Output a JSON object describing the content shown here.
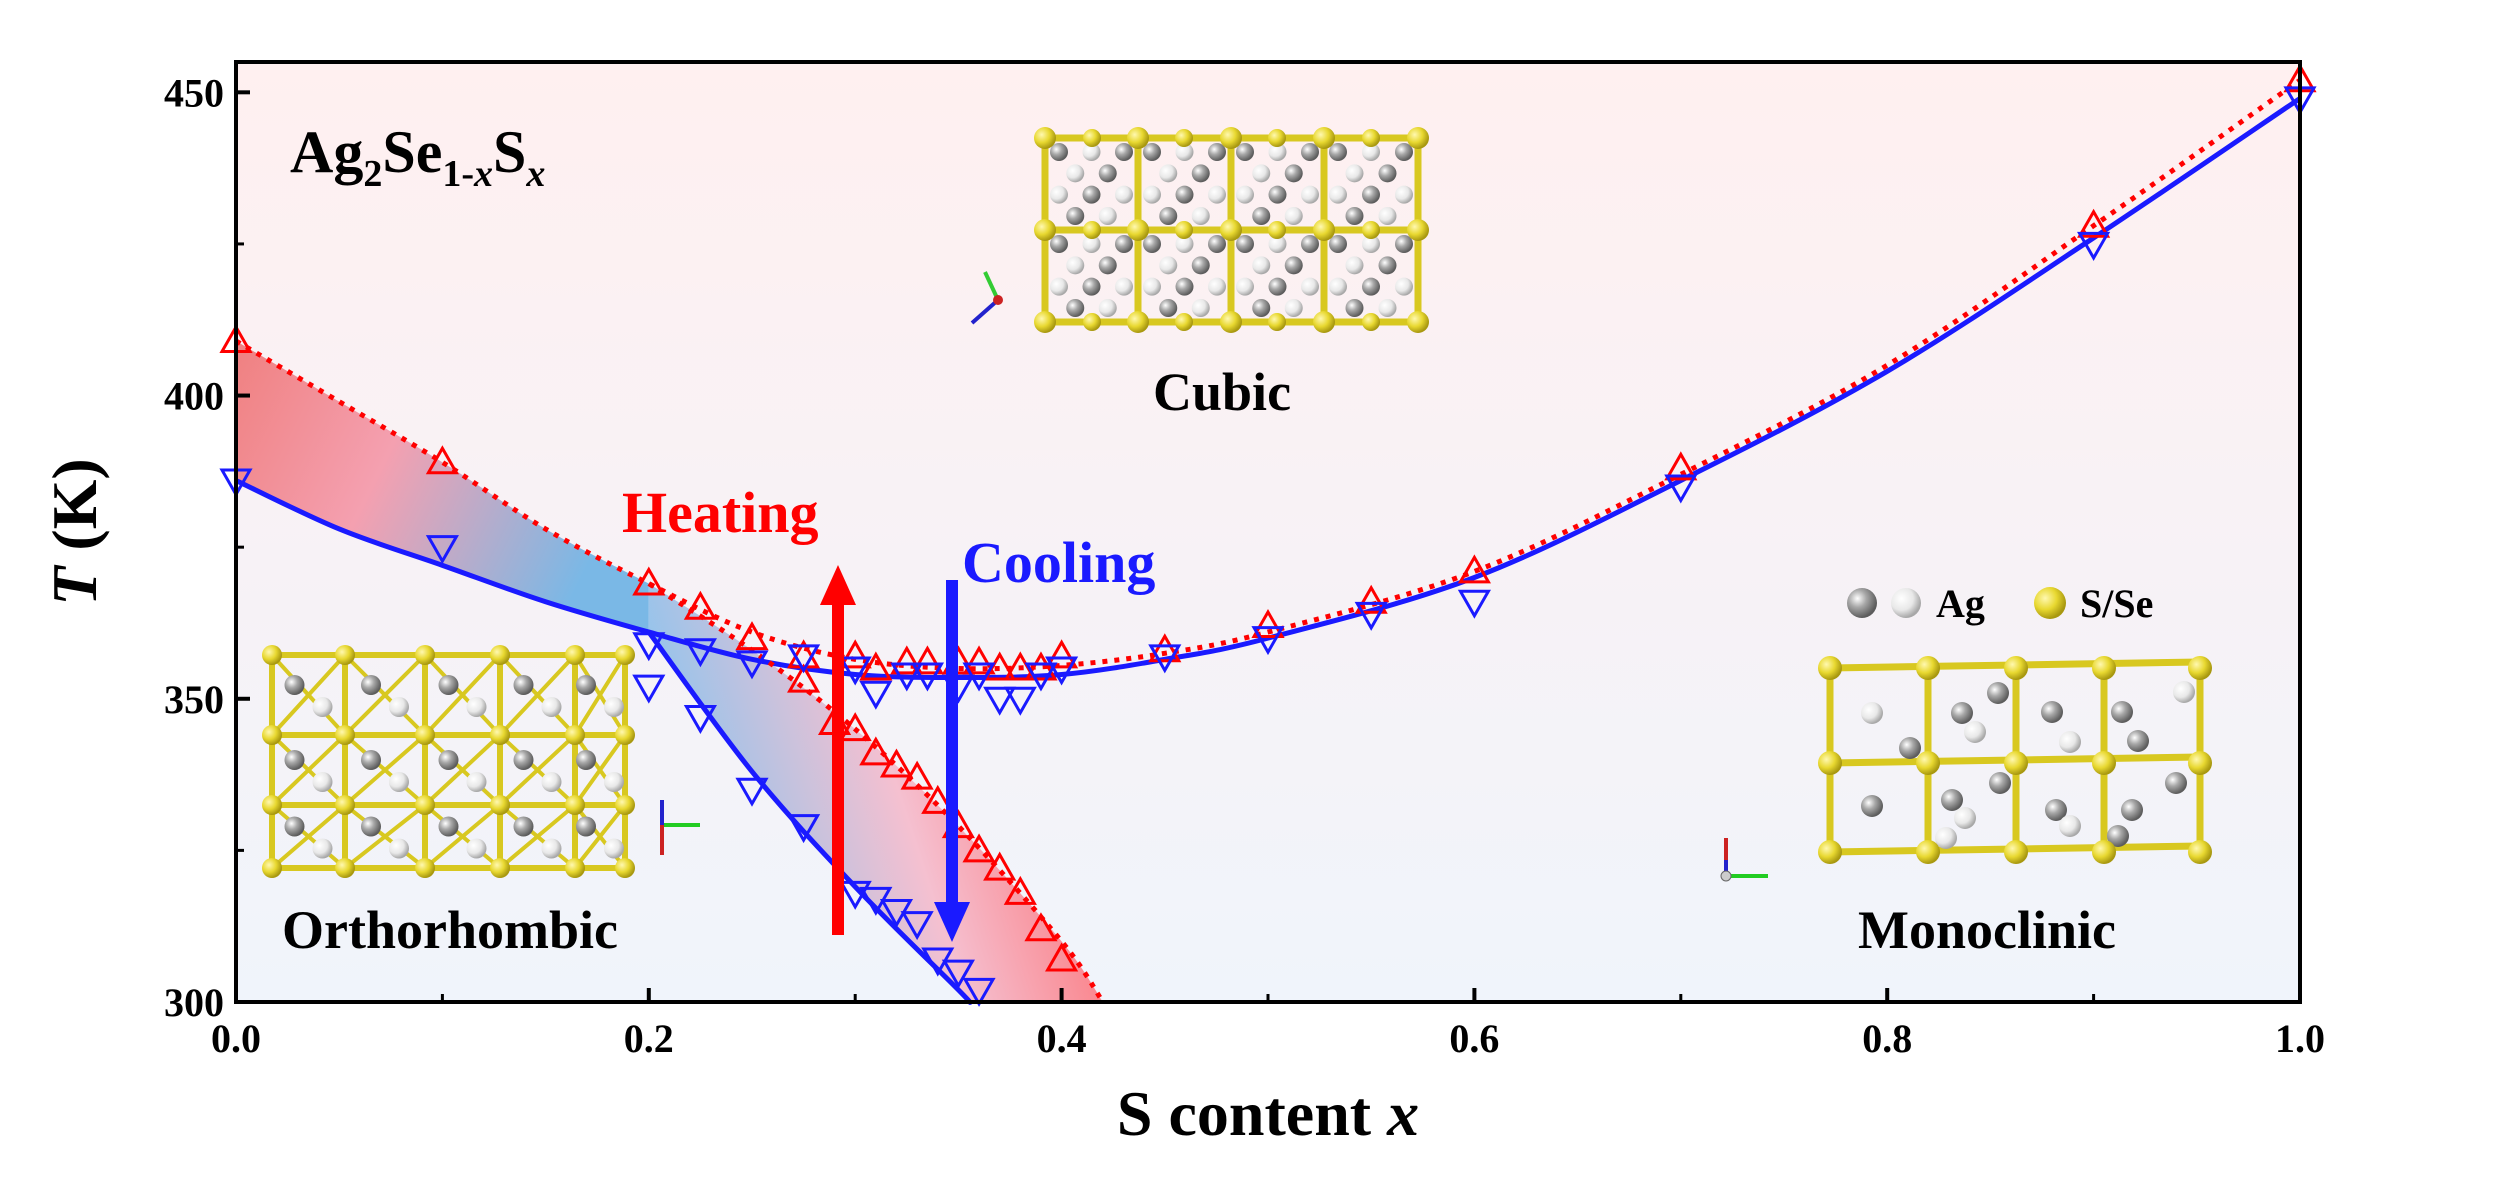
{
  "chart_data": {
    "type": "scatter",
    "title": "",
    "xlabel": {
      "text": "S content ",
      "var": "x"
    },
    "ylabel": {
      "var": "T",
      "text": " (K)"
    },
    "xlim": [
      0,
      1.0
    ],
    "ylim": [
      300,
      455
    ],
    "xticks": [
      "0.0",
      "0.2",
      "0.4",
      "0.6",
      "0.8",
      "1.0"
    ],
    "yticks": [
      "300",
      "350",
      "400",
      "450"
    ],
    "formula": {
      "a": "Ag",
      "a_sub": "2",
      "b": "Se",
      "b_sub": "1-",
      "b_sub_var": "x",
      "c": "S",
      "c_sub_var": "x"
    },
    "colors": {
      "heating": "#ff0000",
      "cooling": "#1a1aff",
      "crystal": "#e0d030",
      "ag_dark": "#8c8c8c",
      "ag_light": "#e6e6e6"
    },
    "annotations": {
      "heating": "Heating",
      "cooling": "Cooling",
      "cubic": "Cubic",
      "orthorhombic": "Orthorhombic",
      "monoclinic": "Monoclinic",
      "legend_ag": "Ag",
      "legend_s": "S/Se"
    },
    "series": [
      {
        "marker": "triangle-up",
        "color": "#ff0000",
        "points": [
          [
            0.0,
            409
          ],
          [
            0.1,
            389
          ],
          [
            0.2,
            369
          ],
          [
            0.225,
            365
          ],
          [
            0.25,
            360
          ],
          [
            0.275,
            357
          ],
          [
            0.3,
            357
          ],
          [
            0.31,
            355
          ],
          [
            0.325,
            356
          ],
          [
            0.335,
            356
          ],
          [
            0.35,
            356
          ],
          [
            0.36,
            356
          ],
          [
            0.37,
            355
          ],
          [
            0.38,
            355
          ],
          [
            0.39,
            355
          ],
          [
            0.4,
            357
          ],
          [
            0.45,
            358
          ],
          [
            0.5,
            362
          ],
          [
            0.55,
            366
          ],
          [
            0.6,
            371
          ],
          [
            0.7,
            388
          ],
          [
            0.9,
            428
          ],
          [
            1.0,
            452
          ],
          [
            0.275,
            353
          ],
          [
            0.29,
            346
          ],
          [
            0.3,
            345
          ],
          [
            0.31,
            341
          ],
          [
            0.32,
            339
          ],
          [
            0.33,
            337
          ],
          [
            0.34,
            333
          ],
          [
            0.35,
            329
          ],
          [
            0.36,
            325
          ],
          [
            0.37,
            322
          ],
          [
            0.38,
            318
          ],
          [
            0.39,
            312
          ],
          [
            0.4,
            307
          ]
        ]
      },
      {
        "marker": "triangle-down",
        "color": "#1a1aff",
        "points": [
          [
            0.0,
            386
          ],
          [
            0.1,
            375
          ],
          [
            0.2,
            359
          ],
          [
            0.225,
            358
          ],
          [
            0.25,
            356
          ],
          [
            0.275,
            357
          ],
          [
            0.3,
            355
          ],
          [
            0.31,
            351
          ],
          [
            0.325,
            354
          ],
          [
            0.335,
            354
          ],
          [
            0.35,
            352
          ],
          [
            0.36,
            354
          ],
          [
            0.37,
            350
          ],
          [
            0.38,
            350
          ],
          [
            0.39,
            354
          ],
          [
            0.4,
            355
          ],
          [
            0.45,
            357
          ],
          [
            0.5,
            360
          ],
          [
            0.55,
            364
          ],
          [
            0.6,
            366
          ],
          [
            0.7,
            385
          ],
          [
            0.9,
            425
          ],
          [
            1.0,
            449
          ],
          [
            0.2,
            352
          ],
          [
            0.225,
            347
          ],
          [
            0.25,
            335
          ],
          [
            0.275,
            329
          ],
          [
            0.3,
            318
          ],
          [
            0.31,
            317
          ],
          [
            0.32,
            315
          ],
          [
            0.33,
            313
          ],
          [
            0.34,
            307
          ],
          [
            0.35,
            305
          ],
          [
            0.36,
            302
          ]
        ]
      }
    ],
    "curves": [
      {
        "name_ref": "heating",
        "style": "dotted",
        "color": "#ff0000",
        "points": [
          [
            0.0,
            409
          ],
          [
            0.05,
            399
          ],
          [
            0.1,
            389
          ],
          [
            0.15,
            378
          ],
          [
            0.2,
            369
          ],
          [
            0.25,
            361
          ],
          [
            0.3,
            356.5
          ],
          [
            0.35,
            355
          ],
          [
            0.4,
            355.5
          ],
          [
            0.45,
            357.5
          ],
          [
            0.5,
            361
          ],
          [
            0.6,
            371
          ],
          [
            0.7,
            387
          ],
          [
            0.8,
            405
          ],
          [
            0.9,
            428
          ],
          [
            1.0,
            452
          ]
        ]
      },
      {
        "name_ref": "cooling",
        "style": "solid",
        "color": "#1a1aff",
        "points": [
          [
            0.0,
            386
          ],
          [
            0.05,
            378
          ],
          [
            0.1,
            372
          ],
          [
            0.15,
            366
          ],
          [
            0.2,
            361
          ],
          [
            0.25,
            356.5
          ],
          [
            0.3,
            354
          ],
          [
            0.35,
            353.5
          ],
          [
            0.4,
            354
          ],
          [
            0.45,
            356.5
          ],
          [
            0.5,
            360
          ],
          [
            0.6,
            370
          ],
          [
            0.7,
            386
          ],
          [
            0.8,
            404
          ],
          [
            0.9,
            426
          ],
          [
            1.0,
            449
          ]
        ]
      },
      {
        "name_ref": "heating",
        "style": "dotted",
        "color": "#ff0000",
        "points": [
          [
            0.2,
            369
          ],
          [
            0.25,
            358
          ],
          [
            0.3,
            345
          ],
          [
            0.35,
            329
          ],
          [
            0.4,
            310
          ],
          [
            0.42,
            300
          ]
        ]
      },
      {
        "name_ref": "cooling",
        "style": "solid",
        "color": "#1a1aff",
        "points": [
          [
            0.2,
            361
          ],
          [
            0.25,
            338
          ],
          [
            0.3,
            319
          ],
          [
            0.35,
            302
          ],
          [
            0.355,
            300
          ]
        ]
      }
    ]
  }
}
